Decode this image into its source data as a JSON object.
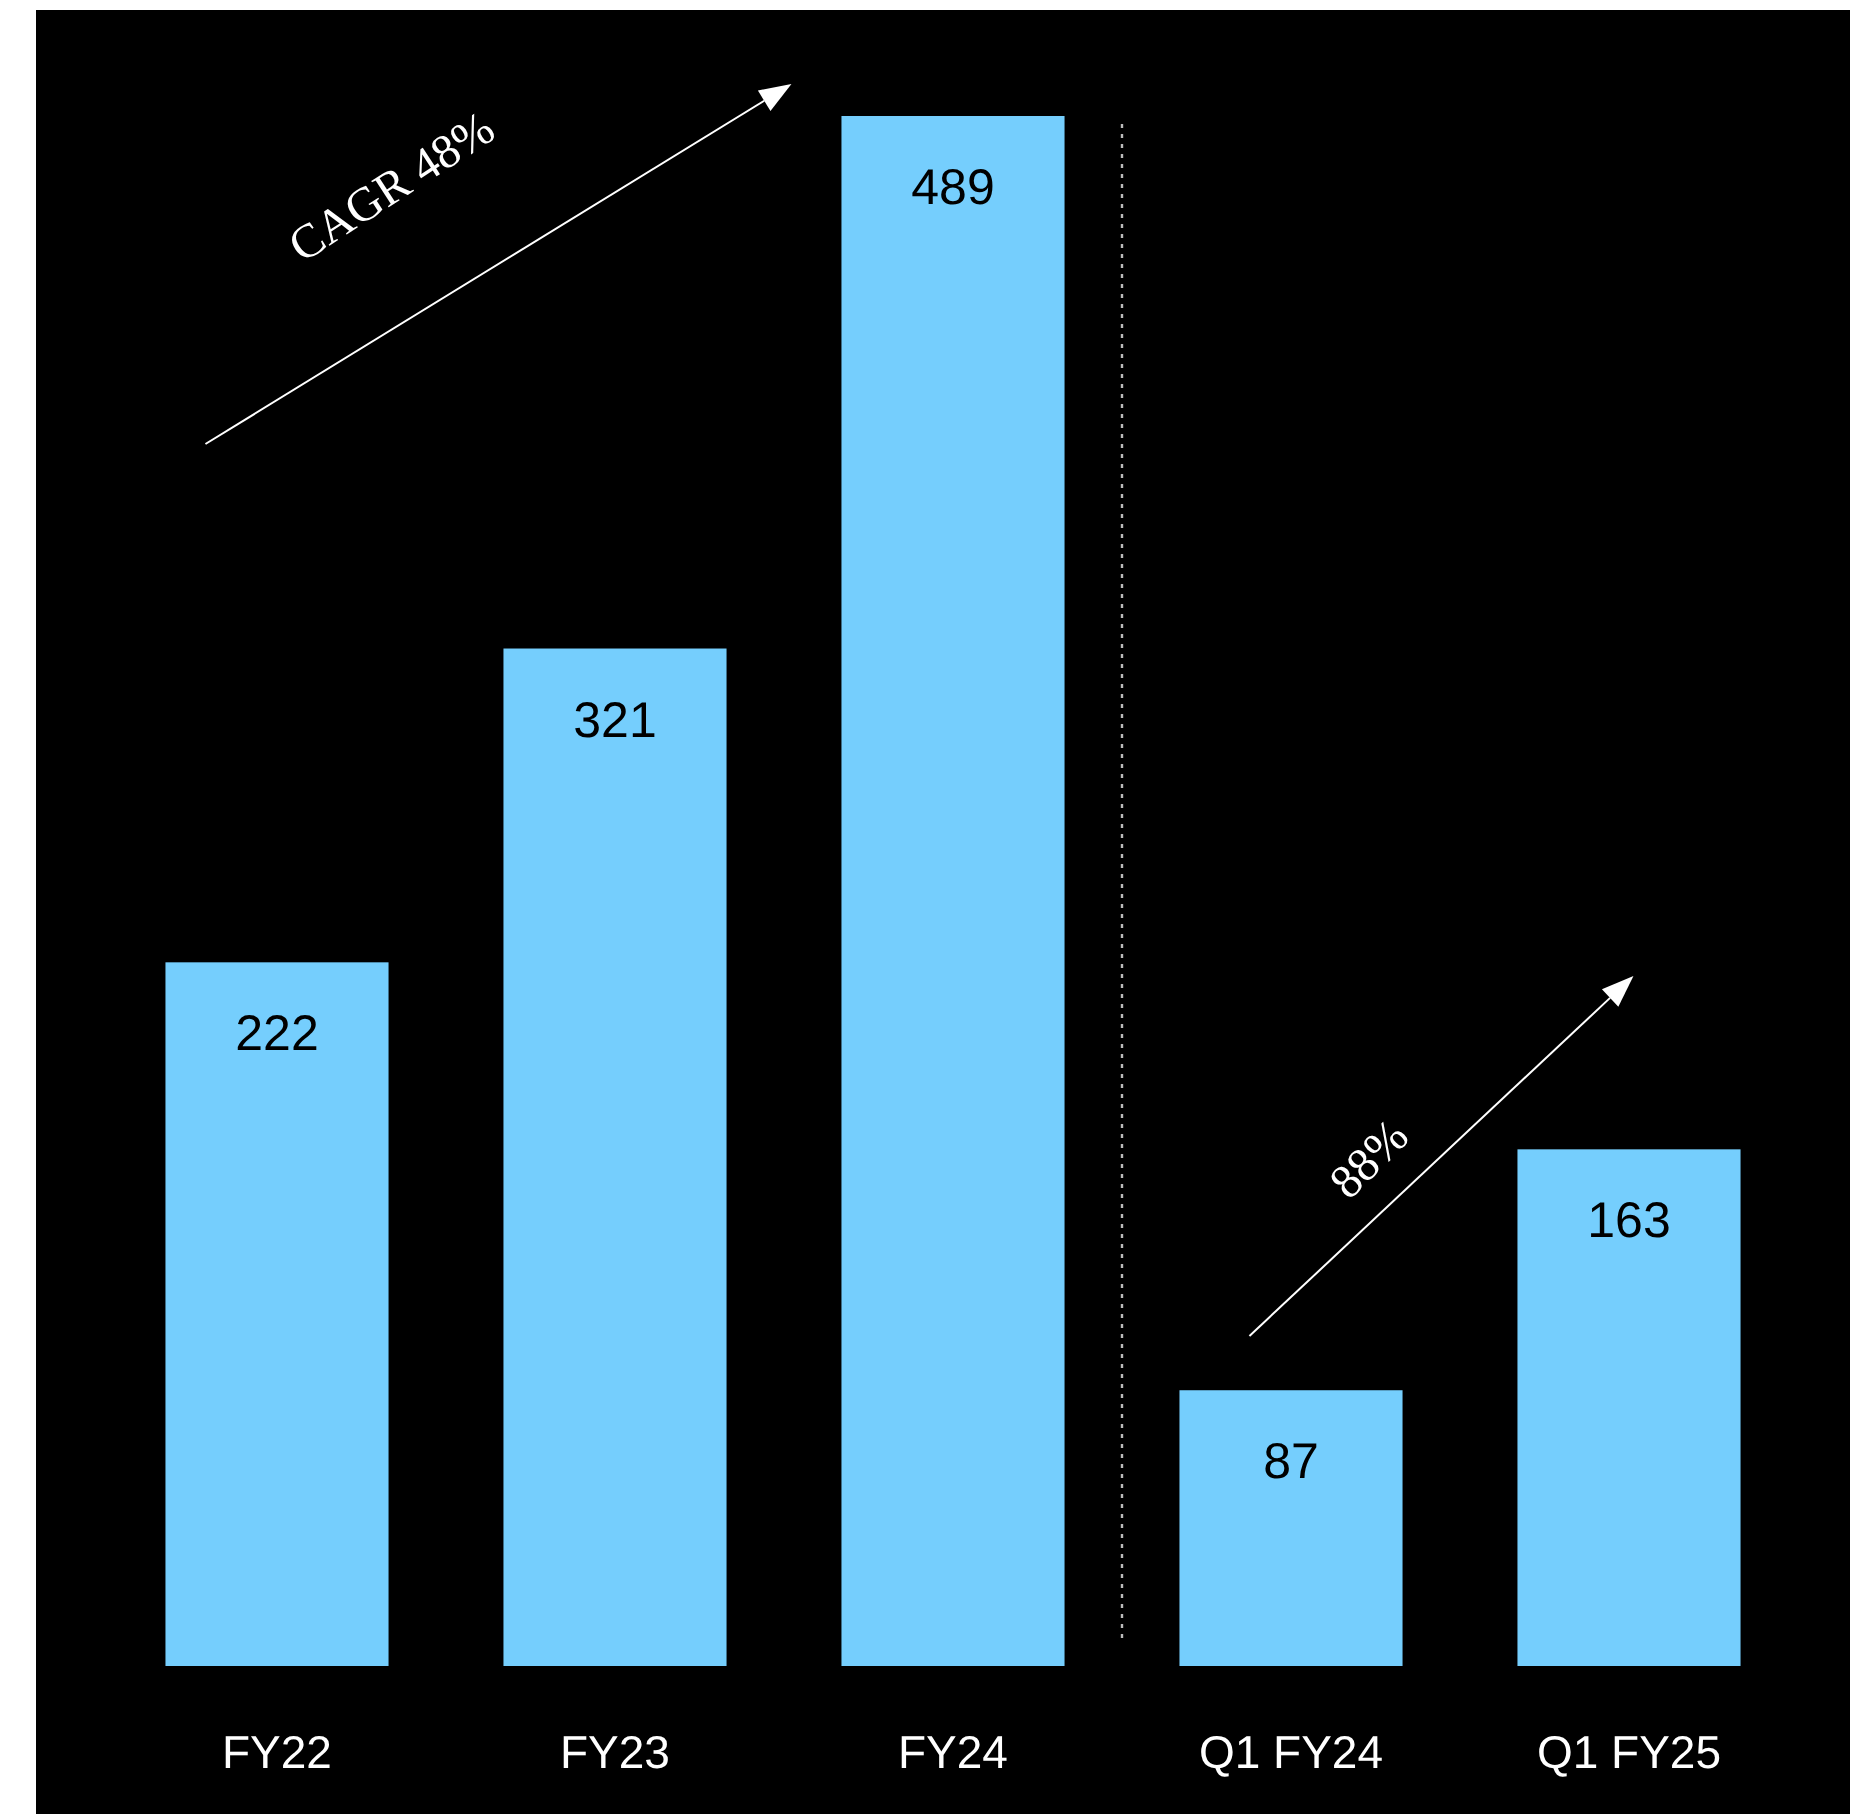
{
  "chart_data": {
    "type": "bar",
    "categories": [
      "FY22",
      "FY23",
      "FY24",
      "Q1 FY24",
      "Q1 FY25"
    ],
    "values": [
      222,
      321,
      489,
      87,
      163
    ],
    "color": "#75cefd",
    "data_labels": true,
    "annotations": [
      "CAGR 48%",
      "88%"
    ]
  }
}
